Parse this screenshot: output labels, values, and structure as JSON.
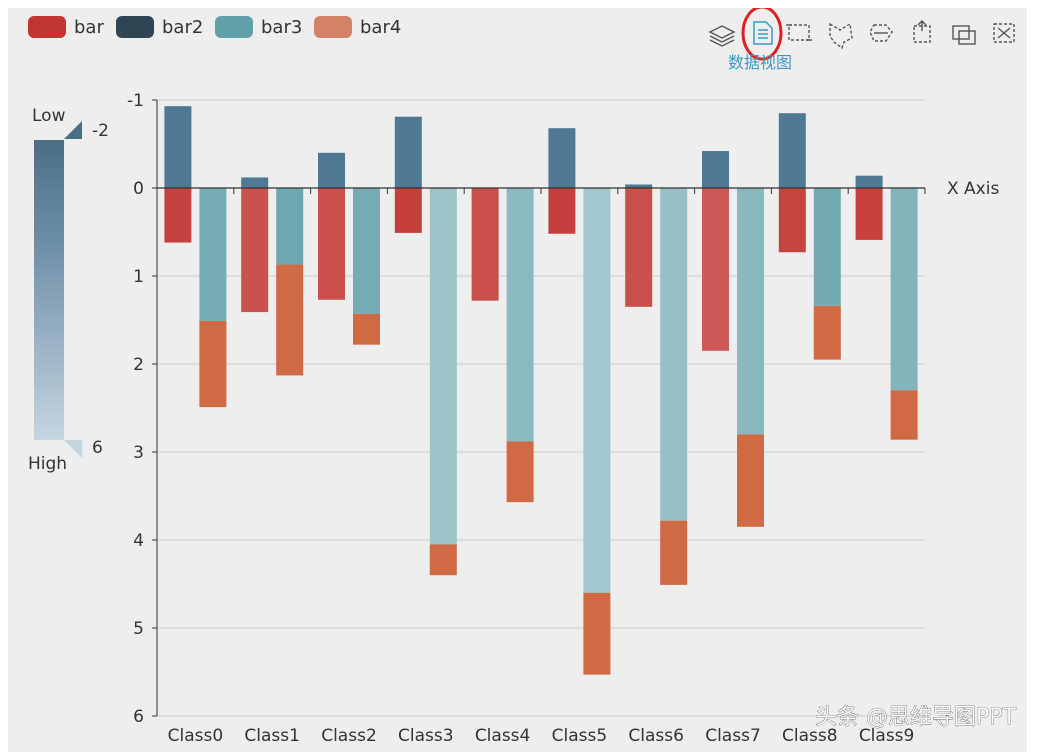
{
  "legend": [
    {
      "name": "bar",
      "color": "#c23531"
    },
    {
      "name": "bar2",
      "color": "#2f4554"
    },
    {
      "name": "bar3",
      "color": "#61a0a8"
    },
    {
      "name": "bar4",
      "color": "#d48265"
    }
  ],
  "toolbox": {
    "icons": [
      "layers-icon",
      "data-view-icon",
      "rect-select-icon",
      "lasso-select-icon",
      "keep-select-icon",
      "clear-select-icon",
      "zoom-icon",
      "restore-icon"
    ],
    "active_label": "数据视图"
  },
  "visual_map": {
    "low_label": "Low",
    "high_label": "High",
    "min_text": "-2",
    "max_text": "6",
    "color_low": "#4c6e85",
    "color_high": "#c5d5e0"
  },
  "watermark": "头条 @思维导图PPT",
  "chart_data": {
    "type": "bar",
    "stacked": true,
    "y_inverse": true,
    "categories": [
      "Class0",
      "Class1",
      "Class2",
      "Class3",
      "Class4",
      "Class5",
      "Class6",
      "Class7",
      "Class8",
      "Class9"
    ],
    "xlabel": "X Axis",
    "ylim": [
      -1,
      6
    ],
    "yticks": [
      "-1",
      "0",
      "1",
      "2",
      "3",
      "4",
      "5",
      "6"
    ],
    "stacks": [
      {
        "name": "one",
        "series": [
          "bar",
          "bar2"
        ]
      },
      {
        "name": "two",
        "series": [
          "bar3",
          "bar4"
        ]
      }
    ],
    "series": [
      {
        "name": "bar",
        "stack": "one",
        "values": [
          0.62,
          1.41,
          1.27,
          0.51,
          1.28,
          0.52,
          1.35,
          1.85,
          0.73,
          0.59
        ]
      },
      {
        "name": "bar2",
        "stack": "one",
        "values": [
          -0.93,
          -0.12,
          -0.4,
          -0.81,
          0,
          -0.68,
          -0.04,
          -0.42,
          -0.85,
          -0.14
        ]
      },
      {
        "name": "bar3",
        "stack": "two",
        "values": [
          1.51,
          0.87,
          1.43,
          4.05,
          2.88,
          4.6,
          3.78,
          2.8,
          1.34,
          2.3
        ]
      },
      {
        "name": "bar4",
        "stack": "two",
        "values": [
          0.98,
          1.26,
          0.35,
          0.35,
          0.69,
          0.93,
          0.73,
          1.05,
          0.61,
          0.56
        ]
      }
    ]
  }
}
